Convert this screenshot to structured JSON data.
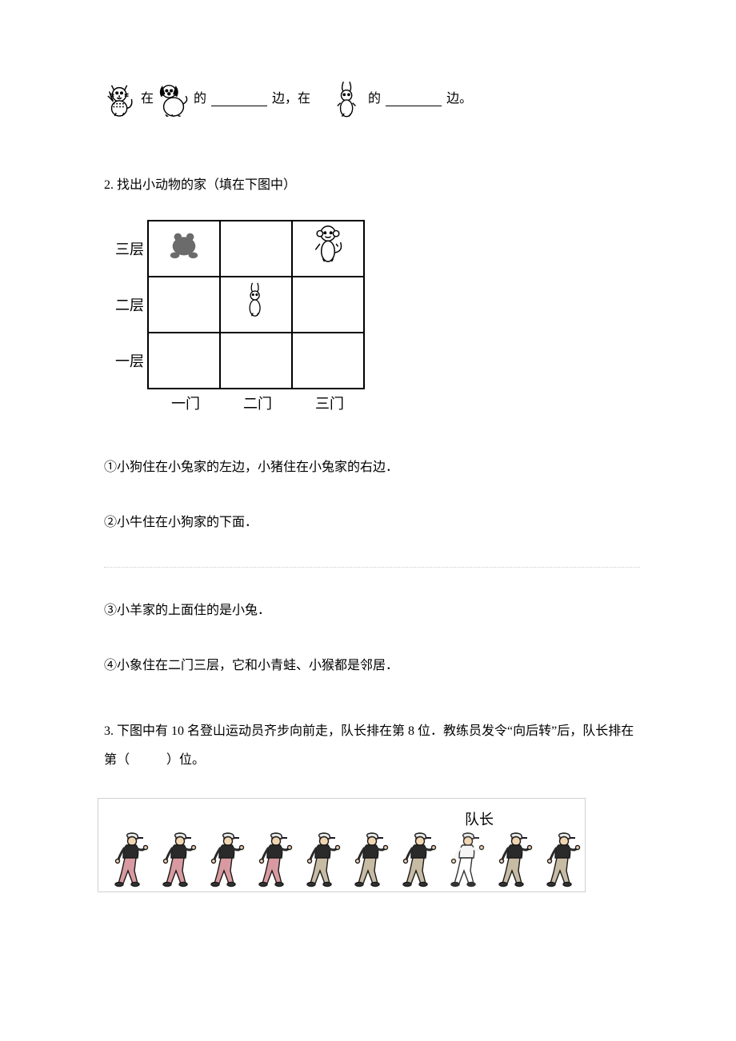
{
  "q1": {
    "t_zai": "在",
    "t_de": "的",
    "t_bian_comma": "边，在",
    "t_bian_period": "边。",
    "icons": {
      "cat": "cat-icon",
      "dog": "dog-icon",
      "rabbit": "rabbit-icon"
    },
    "colors": {
      "stroke": "#000000"
    }
  },
  "q2": {
    "heading": "2. 找出小动物的家（填在下图中）",
    "row_labels": [
      "三层",
      "二层",
      "一层"
    ],
    "col_labels": [
      "一门",
      "二门",
      "三门"
    ],
    "cells": {
      "r3c1": "frog",
      "r3c2": "",
      "r3c3": "monkey",
      "r2c1": "",
      "r2c2": "rabbit",
      "r2c3": "",
      "r1c1": "",
      "r1c2": "",
      "r1c3": ""
    },
    "statements": [
      "①小狗住在小兔家的左边，小猪住在小兔家的右边．",
      "②小牛住在小狗家的下面．",
      "③小羊家的上面住的是小兔．",
      "④小象住在二门三层，它和小青蛙、小猴都是邻居．"
    ],
    "colors": {
      "frog": "#6b6b6b",
      "border": "#000000"
    }
  },
  "q3": {
    "text_a": "3. 下图中有 10 名登山运动员齐步向前走，队长排在第 8 位．教练员发令“向后转”后，队长排在第（",
    "text_b": "）位。",
    "leader_label": "队长",
    "count": 10,
    "leader_index": 8,
    "colors": {
      "border": "#d0d0d0",
      "shirt": "#2a2a2a",
      "skin": "#f2d6b3",
      "cap": "#e8e8e8",
      "pants_pink": "#d89aa0",
      "pants_tan": "#c7bba3",
      "leader_shirt": "#f5f5f5",
      "leader_outline": "#333333"
    },
    "pants": [
      "pink",
      "pink",
      "pink",
      "pink",
      "tan",
      "tan",
      "tan",
      "leader",
      "tan",
      "tan"
    ]
  }
}
